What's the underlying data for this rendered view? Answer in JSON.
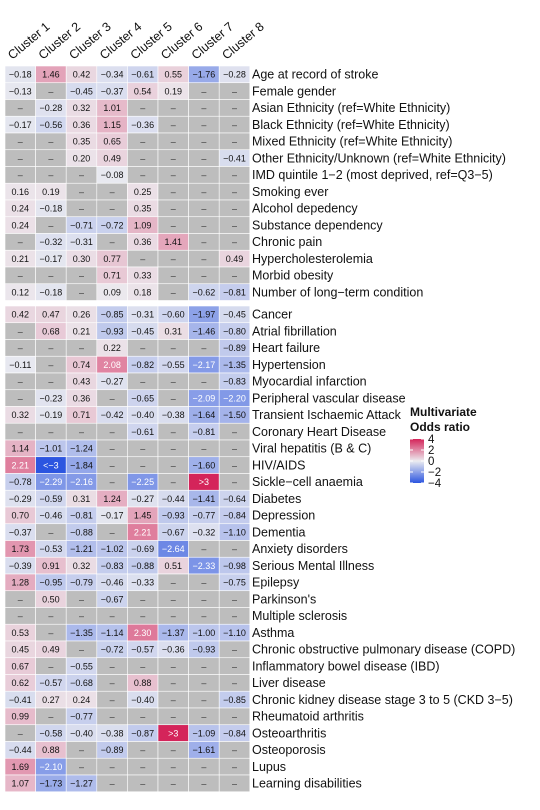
{
  "chart_data": {
    "type": "heatmap",
    "columns": [
      "Cluster 1",
      "Cluster 2",
      "Cluster 3",
      "Cluster 4",
      "Cluster 5",
      "Cluster 6",
      "Cluster 7",
      "Cluster 8"
    ],
    "groups": [
      {
        "rows": [
          {
            "label": "Age at record of stroke",
            "values": [
              "-0.18",
              "1.46",
              "0.42",
              "-0.34",
              "-0.61",
              "0.55",
              "-1.76",
              "-0.28"
            ]
          },
          {
            "label": "Female gender",
            "values": [
              "-0.13",
              "-",
              "-0.45",
              "-0.37",
              "0.54",
              "0.19",
              "-",
              "-"
            ]
          },
          {
            "label": "Asian Ethnicity (ref=White Ethnicity)",
            "values": [
              "-",
              "-0.28",
              "0.32",
              "1.01",
              "-",
              "-",
              "-",
              "-"
            ]
          },
          {
            "label": "Black Ethnicity (ref=White Ethnicity)",
            "values": [
              "-0.17",
              "-0.56",
              "0.36",
              "1.15",
              "-0.36",
              "-",
              "-",
              "-"
            ]
          },
          {
            "label": "Mixed Ethnicity (ref=White Ethnicity)",
            "values": [
              "-",
              "-",
              "0.35",
              "0.65",
              "-",
              "-",
              "-",
              "-"
            ]
          },
          {
            "label": "Other Ethnicity/Unknown (ref=White Ethnicity)",
            "values": [
              "-",
              "-",
              "0.20",
              "0.49",
              "-",
              "-",
              "-",
              "-0.41"
            ]
          },
          {
            "label": "IMD quintile 1-2 (most deprived, ref=Q3-5)",
            "values": [
              "-",
              "-",
              "-",
              "-0.08",
              "-",
              "-",
              "-",
              "-"
            ]
          },
          {
            "label": "Smoking ever",
            "values": [
              "0.16",
              "0.19",
              "-",
              "-",
              "0.25",
              "-",
              "-",
              "-"
            ]
          },
          {
            "label": "Alcohol depedency",
            "values": [
              "0.24",
              "-0.18",
              "-",
              "-",
              "0.35",
              "-",
              "-",
              "-"
            ]
          },
          {
            "label": "Substance dependency",
            "values": [
              "0.24",
              "-",
              "-0.71",
              "-0.72",
              "1.09",
              "-",
              "-",
              "-"
            ]
          },
          {
            "label": "Chronic pain",
            "values": [
              "-",
              "-0.32",
              "-0.31",
              "-",
              "0.36",
              "1.41",
              "-",
              "-"
            ]
          },
          {
            "label": "Hypercholesterolemia",
            "values": [
              "0.21",
              "-0.17",
              "0.30",
              "0.77",
              "-",
              "-",
              "-",
              "0.49"
            ]
          },
          {
            "label": "Morbid obesity",
            "values": [
              "-",
              "-",
              "-",
              "0.71",
              "0.33",
              "-",
              "-",
              "-"
            ]
          },
          {
            "label": "Number of long-term condition",
            "values": [
              "0.12",
              "-0.18",
              "-",
              "0.09",
              "0.18",
              "-",
              "-0.62",
              "-0.81"
            ]
          }
        ]
      },
      {
        "rows": [
          {
            "label": "Cancer",
            "values": [
              "0.42",
              "0.47",
              "0.26",
              "-0.85",
              "-0.31",
              "-0.60",
              "-1.97",
              "-0.45"
            ]
          },
          {
            "label": "Atrial fibrillation",
            "values": [
              "-",
              "0.68",
              "0.21",
              "-0.93",
              "-0.45",
              "0.31",
              "-1.46",
              "-0.80"
            ]
          },
          {
            "label": "Heart failure",
            "values": [
              "-",
              "-",
              "-",
              "0.22",
              "-",
              "-",
              "-",
              "-0.89"
            ]
          },
          {
            "label": "Hypertension",
            "values": [
              "-0.11",
              "-",
              "0.74",
              "2.08",
              "-0.82",
              "-0.55",
              "-2.17",
              "-1.35"
            ]
          },
          {
            "label": "Myocardial infarction",
            "values": [
              "-",
              "-",
              "0.43",
              "-0.27",
              "-",
              "-",
              "-",
              "-0.83"
            ]
          },
          {
            "label": "Peripheral vascular disease",
            "values": [
              "-",
              "-0.23",
              "0.36",
              "-",
              "-0.65",
              "-",
              "-2.09",
              "-2.20"
            ]
          },
          {
            "label": "Transient Ischaemic Attack",
            "values": [
              "0.32",
              "-0.19",
              "0.71",
              "-0.42",
              "-0.40",
              "-0.38",
              "-1.64",
              "-1.50"
            ]
          },
          {
            "label": "Coronary Heart Disease",
            "values": [
              "-",
              "-",
              "-",
              "-",
              "-0.61",
              "-",
              "-0.81",
              "-"
            ]
          },
          {
            "label": "Viral hepatitis (B & C)",
            "values": [
              "1.14",
              "-1.01",
              "-1.24",
              "-",
              "-",
              "-",
              "-",
              "-"
            ]
          },
          {
            "label": "HIV/AIDS",
            "values": [
              "2.21",
              "<-3",
              "-1.84",
              "-",
              "-",
              "-",
              "-1.60",
              "-"
            ]
          },
          {
            "label": "Sickle-cell anaemia",
            "values": [
              "-0.78",
              "-2.29",
              "-2.16",
              "-",
              "-2.25",
              "-",
              ">3",
              "-"
            ]
          },
          {
            "label": "Diabetes",
            "values": [
              "-0.29",
              "-0.59",
              "0.31",
              "1.24",
              "-0.27",
              "-0.44",
              "-1.41",
              "-0.64"
            ]
          },
          {
            "label": "Depression",
            "values": [
              "0.70",
              "-0.46",
              "-0.81",
              "-0.17",
              "1.45",
              "-0.93",
              "-0.77",
              "-0.84"
            ]
          },
          {
            "label": "Dementia",
            "values": [
              "-0.37",
              "-",
              "-0.88",
              "-",
              "2.21",
              "-0.67",
              "-0.32",
              "-1.10"
            ]
          },
          {
            "label": "Anxiety disorders",
            "values": [
              "1.73",
              "-0.53",
              "-1.21",
              "-1.02",
              "-0.69",
              "-2.64",
              "-",
              "-"
            ]
          },
          {
            "label": "Serious Mental Illness",
            "values": [
              "-0.39",
              "0.91",
              "0.32",
              "-0.83",
              "-0.88",
              "0.51",
              "-2.33",
              "-0.98"
            ]
          },
          {
            "label": "Epilepsy",
            "values": [
              "1.28",
              "-0.95",
              "-0.79",
              "-0.46",
              "-0.33",
              "-",
              "-",
              "-0.75"
            ]
          },
          {
            "label": "Parkinson's",
            "values": [
              "-",
              "0.50",
              "-",
              "-0.67",
              "-",
              "-",
              "-",
              "-"
            ]
          },
          {
            "label": "Multiple sclerosis",
            "values": [
              "-",
              "-",
              "-",
              "-",
              "-",
              "-",
              "-",
              "-"
            ]
          },
          {
            "label": "Asthma",
            "values": [
              "0.53",
              "-",
              "-1.35",
              "-1.14",
              "2.30",
              "-1.37",
              "-1.00",
              "-1.10"
            ]
          },
          {
            "label": "Chronic obstructive pulmonary disease (COPD)",
            "values": [
              "0.45",
              "0.49",
              "-",
              "-0.72",
              "-0.57",
              "-0.36",
              "-0.93",
              "-"
            ]
          },
          {
            "label": "Inflammatory bowel disease (IBD)",
            "values": [
              "0.67",
              "-",
              "-0.55",
              "-",
              "-",
              "-",
              "-",
              "-"
            ]
          },
          {
            "label": "Liver disease",
            "values": [
              "0.62",
              "-0.57",
              "-0.68",
              "-",
              "0.88",
              "-",
              "-",
              "-"
            ]
          },
          {
            "label": "Chronic kidney disease stage 3 to 5 (CKD 3-5)",
            "values": [
              "-0.41",
              "0.27",
              "0.24",
              "-",
              "-0.40",
              "-",
              "-",
              "-0.85"
            ]
          },
          {
            "label": "Rheumatoid arthritis",
            "values": [
              "0.99",
              "-",
              "-0.77",
              "-",
              "-",
              "-",
              "-",
              "-"
            ]
          },
          {
            "label": "Osteoarthritis",
            "values": [
              "-",
              "-0.58",
              "-0.40",
              "-0.38",
              "-0.87",
              ">3",
              "-1.09",
              "-0.84"
            ]
          },
          {
            "label": "Osteoporosis",
            "values": [
              "-0.44",
              "0.88",
              "-",
              "-0.89",
              "-",
              "-",
              "-1.61",
              "-"
            ]
          },
          {
            "label": "Lupus",
            "values": [
              "1.69",
              "-2.10",
              "-",
              "-",
              "-",
              "-",
              "-",
              "-"
            ]
          },
          {
            "label": "Learning disabilities",
            "values": [
              "1.07",
              "-1.73",
              "-1.27",
              "-",
              "-",
              "-",
              "-",
              "-"
            ]
          }
        ]
      }
    ],
    "legend": {
      "title": "Multivariate Odds ratio",
      "title_lines": [
        "Multivariate",
        "Odds ratio"
      ],
      "ticks": [
        4,
        2,
        0,
        -2,
        -4
      ],
      "tick_labels": [
        "4",
        "2",
        "0",
        "−2",
        "−4"
      ],
      "range": [
        -4,
        4
      ],
      "placement": "right"
    },
    "color_scale": {
      "low": "#2c55e0",
      "mid": "#ececf0",
      "high": "#d4245a",
      "missing": "#bdbdbd"
    }
  }
}
